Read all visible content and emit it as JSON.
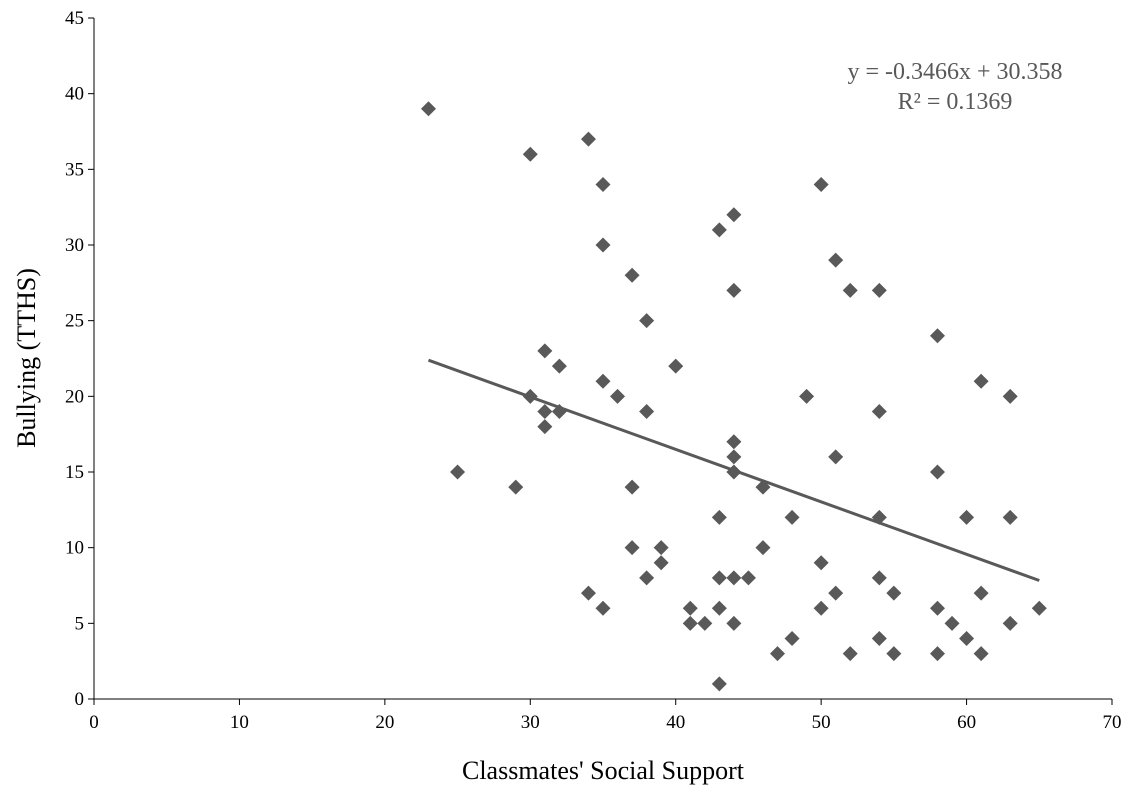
{
  "chart_data": {
    "type": "scatter",
    "xlabel": "Classmates' Social Support",
    "ylabel": "Bullying (TTHS)",
    "xlim": [
      0,
      70
    ],
    "ylim": [
      0,
      45
    ],
    "x_ticks": [
      "0",
      "10",
      "20",
      "30",
      "40",
      "50",
      "60",
      "70"
    ],
    "y_ticks": [
      "0",
      "5",
      "10",
      "15",
      "20",
      "25",
      "30",
      "35",
      "40",
      "45"
    ],
    "grid": false,
    "marker_color": "#595959",
    "trendline_color": "#595959",
    "points": [
      [
        23,
        39
      ],
      [
        25,
        15
      ],
      [
        29,
        14
      ],
      [
        30,
        36
      ],
      [
        30,
        20
      ],
      [
        31,
        23
      ],
      [
        31,
        19
      ],
      [
        31,
        18
      ],
      [
        32,
        22
      ],
      [
        32,
        19
      ],
      [
        34,
        37
      ],
      [
        34,
        7
      ],
      [
        35,
        34
      ],
      [
        35,
        30
      ],
      [
        35,
        21
      ],
      [
        35,
        6
      ],
      [
        36,
        20
      ],
      [
        37,
        28
      ],
      [
        37,
        14
      ],
      [
        37,
        10
      ],
      [
        38,
        25
      ],
      [
        38,
        19
      ],
      [
        38,
        8
      ],
      [
        39,
        10
      ],
      [
        39,
        9
      ],
      [
        40,
        22
      ],
      [
        41,
        6
      ],
      [
        41,
        5
      ],
      [
        42,
        5
      ],
      [
        43,
        31
      ],
      [
        43,
        12
      ],
      [
        43,
        8
      ],
      [
        43,
        6
      ],
      [
        43,
        1
      ],
      [
        44,
        32
      ],
      [
        44,
        27
      ],
      [
        44,
        17
      ],
      [
        44,
        16
      ],
      [
        44,
        15
      ],
      [
        44,
        8
      ],
      [
        44,
        5
      ],
      [
        45,
        8
      ],
      [
        46,
        14
      ],
      [
        46,
        10
      ],
      [
        47,
        3
      ],
      [
        48,
        12
      ],
      [
        48,
        4
      ],
      [
        49,
        20
      ],
      [
        50,
        34
      ],
      [
        50,
        9
      ],
      [
        50,
        6
      ],
      [
        51,
        29
      ],
      [
        51,
        16
      ],
      [
        51,
        7
      ],
      [
        52,
        27
      ],
      [
        52,
        3
      ],
      [
        54,
        27
      ],
      [
        54,
        19
      ],
      [
        54,
        12
      ],
      [
        54,
        8
      ],
      [
        54,
        4
      ],
      [
        55,
        7
      ],
      [
        55,
        3
      ],
      [
        58,
        24
      ],
      [
        58,
        15
      ],
      [
        58,
        6
      ],
      [
        58,
        3
      ],
      [
        59,
        5
      ],
      [
        60,
        12
      ],
      [
        60,
        4
      ],
      [
        61,
        21
      ],
      [
        61,
        7
      ],
      [
        61,
        3
      ],
      [
        63,
        20
      ],
      [
        63,
        12
      ],
      [
        63,
        5
      ],
      [
        65,
        6
      ]
    ],
    "trendline": {
      "slope": -0.3466,
      "intercept": 30.358,
      "x_range": [
        23,
        65
      ],
      "equation": "y = -0.3466x + 30.358",
      "r_squared": "R² = 0.1369"
    }
  }
}
